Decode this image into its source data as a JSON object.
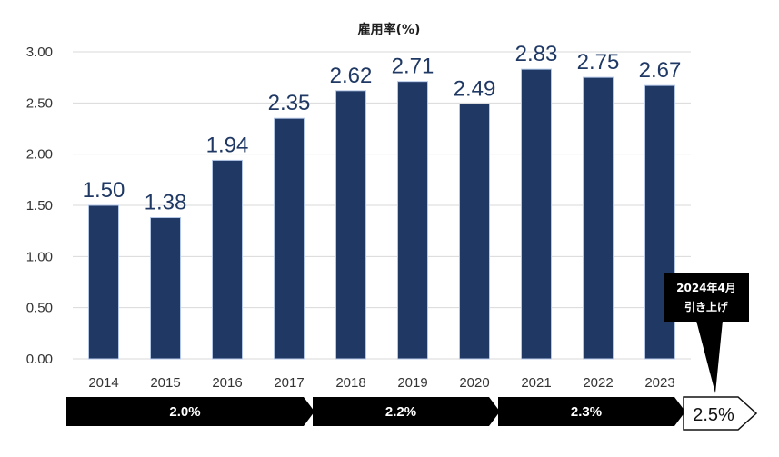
{
  "chart_data": {
    "type": "bar",
    "title": "雇用率(%)",
    "categories": [
      "2014",
      "2015",
      "2016",
      "2017",
      "2018",
      "2019",
      "2020",
      "2021",
      "2022",
      "2023"
    ],
    "values": [
      1.5,
      1.38,
      1.94,
      2.35,
      2.62,
      2.71,
      2.49,
      2.83,
      2.75,
      2.67
    ],
    "value_labels": [
      "1.50",
      "1.38",
      "1.94",
      "2.35",
      "2.62",
      "2.71",
      "2.49",
      "2.83",
      "2.75",
      "2.67"
    ],
    "ylim": [
      0,
      3
    ],
    "yticks": [
      "0.00",
      "0.50",
      "1.00",
      "1.50",
      "2.00",
      "2.50",
      "3.00"
    ],
    "xlabel": "",
    "ylabel": "",
    "grid": true,
    "bar_color": "#203864"
  },
  "rate_bands": [
    {
      "label": "2.0%",
      "from_category": "2014",
      "to_category": "2017"
    },
    {
      "label": "2.2%",
      "from_category": "2018",
      "to_category": "2020"
    },
    {
      "label": "2.3%",
      "from_category": "2021",
      "to_category": "2023"
    }
  ],
  "target_band": {
    "label": "2.5%"
  },
  "callout": {
    "line1": "2024年4月",
    "line2": "引き上げ"
  },
  "colors": {
    "bar": "#203864",
    "band": "#000000",
    "grid": "#d9d9d9",
    "label": "#1f3864"
  }
}
